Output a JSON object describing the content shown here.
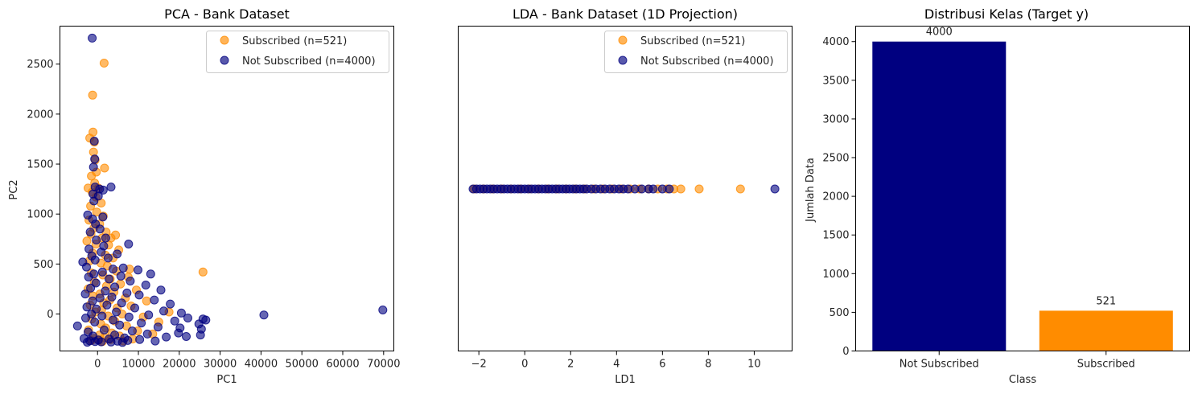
{
  "figure": {
    "background": "#ffffff",
    "colors": {
      "subscribed": "#FF8C00",
      "not_subscribed": "#000080"
    }
  },
  "chart_data": [
    {
      "type": "scatter",
      "title": "PCA - Bank Dataset",
      "xlabel": "PC1",
      "ylabel": "PC2",
      "xlim": [
        -9200,
        72500
      ],
      "ylim": [
        -370,
        2880
      ],
      "xticks": [
        0,
        10000,
        20000,
        30000,
        40000,
        50000,
        60000,
        70000
      ],
      "xtick_labels": [
        "0",
        "10000",
        "20000",
        "30000",
        "40000",
        "50000",
        "60000",
        "70000"
      ],
      "yticks": [
        0,
        500,
        1000,
        1500,
        2000,
        2500
      ],
      "ytick_labels": [
        "0",
        "500",
        "1000",
        "1500",
        "2000",
        "2500"
      ],
      "legend_position": "upper right",
      "series": [
        {
          "name": "Subscribed (n=521)",
          "color": "#FF8C00",
          "points": [
            [
              1600,
              2510
            ],
            [
              -1200,
              2190
            ],
            [
              -1100,
              1820
            ],
            [
              -1900,
              1760
            ],
            [
              -800,
              1720
            ],
            [
              -1000,
              1620
            ],
            [
              -600,
              1540
            ],
            [
              1700,
              1460
            ],
            [
              -300,
              1420
            ],
            [
              -1500,
              1380
            ],
            [
              -700,
              1310
            ],
            [
              200,
              1260
            ],
            [
              -2300,
              1260
            ],
            [
              -1300,
              1220
            ],
            [
              -400,
              1170
            ],
            [
              900,
              1110
            ],
            [
              -1700,
              1080
            ],
            [
              -200,
              1020
            ],
            [
              1400,
              980
            ],
            [
              -2100,
              940
            ],
            [
              500,
              900
            ],
            [
              -900,
              860
            ],
            [
              2100,
              820
            ],
            [
              -1600,
              800
            ],
            [
              4400,
              790
            ],
            [
              1100,
              760
            ],
            [
              3300,
              760
            ],
            [
              -2600,
              730
            ],
            [
              -400,
              700
            ],
            [
              2700,
              690
            ],
            [
              5200,
              640
            ],
            [
              -1200,
              610
            ],
            [
              1900,
              590
            ],
            [
              3800,
              560
            ],
            [
              -2000,
              530
            ],
            [
              800,
              510
            ],
            [
              2400,
              480
            ],
            [
              7800,
              450
            ],
            [
              4600,
              430
            ],
            [
              25800,
              420
            ],
            [
              -1500,
              410
            ],
            [
              1300,
              390
            ],
            [
              7500,
              370
            ],
            [
              3100,
              350
            ],
            [
              -800,
              320
            ],
            [
              5600,
              300
            ],
            [
              2200,
              280
            ],
            [
              -2300,
              250
            ],
            [
              9500,
              240
            ],
            [
              4000,
              220
            ],
            [
              600,
              200
            ],
            [
              -1100,
              180
            ],
            [
              6800,
              160
            ],
            [
              3000,
              140
            ],
            [
              12000,
              130
            ],
            [
              1500,
              110
            ],
            [
              -1800,
              90
            ],
            [
              8200,
              80
            ],
            [
              4800,
              60
            ],
            [
              17500,
              20
            ],
            [
              1000,
              40
            ],
            [
              -500,
              20
            ],
            [
              6000,
              0
            ],
            [
              2600,
              -20
            ],
            [
              11200,
              -30
            ],
            [
              -1400,
              -50
            ],
            [
              4200,
              -70
            ],
            [
              15000,
              -80
            ],
            [
              800,
              -100
            ],
            [
              7100,
              -120
            ],
            [
              2000,
              -140
            ],
            [
              -2200,
              -160
            ],
            [
              9800,
              -170
            ],
            [
              3500,
              -190
            ],
            [
              13500,
              -200
            ],
            [
              500,
              -210
            ],
            [
              5400,
              -220
            ],
            [
              1700,
              -235
            ],
            [
              -900,
              -245
            ],
            [
              8600,
              -250
            ],
            [
              3200,
              -255
            ],
            [
              300,
              -260
            ],
            [
              -1500,
              -265
            ],
            [
              6300,
              -270
            ],
            [
              1200,
              -275
            ]
          ]
        },
        {
          "name": "Not Subscribed (n=4000)",
          "color": "#000080",
          "points": [
            [
              -1300,
              2760
            ],
            [
              -800,
              1730
            ],
            [
              -1000,
              1470
            ],
            [
              -700,
              1550
            ],
            [
              500,
              1250
            ],
            [
              -600,
              1270
            ],
            [
              3300,
              1270
            ],
            [
              1400,
              1240
            ],
            [
              -1100,
              1200
            ],
            [
              200,
              1180
            ],
            [
              -900,
              1130
            ],
            [
              -2400,
              990
            ],
            [
              1300,
              970
            ],
            [
              -1200,
              950
            ],
            [
              -500,
              900
            ],
            [
              600,
              850
            ],
            [
              -1800,
              820
            ],
            [
              2000,
              760
            ],
            [
              -300,
              740
            ],
            [
              7600,
              700
            ],
            [
              1500,
              680
            ],
            [
              -2100,
              650
            ],
            [
              900,
              620
            ],
            [
              4800,
              600
            ],
            [
              -1400,
              580
            ],
            [
              2600,
              560
            ],
            [
              -600,
              540
            ],
            [
              -3600,
              520
            ],
            [
              6300,
              460
            ],
            [
              -2700,
              470
            ],
            [
              3800,
              450
            ],
            [
              9900,
              440
            ],
            [
              1200,
              420
            ],
            [
              -900,
              400
            ],
            [
              13000,
              400
            ],
            [
              5700,
              380
            ],
            [
              -2200,
              370
            ],
            [
              2800,
              350
            ],
            [
              8000,
              330
            ],
            [
              -400,
              310
            ],
            [
              11800,
              290
            ],
            [
              4200,
              270
            ],
            [
              -1700,
              260
            ],
            [
              15500,
              240
            ],
            [
              1900,
              230
            ],
            [
              7200,
              210
            ],
            [
              -3000,
              200
            ],
            [
              10200,
              190
            ],
            [
              3500,
              170
            ],
            [
              600,
              160
            ],
            [
              13900,
              140
            ],
            [
              -1200,
              130
            ],
            [
              5900,
              110
            ],
            [
              17800,
              100
            ],
            [
              2300,
              90
            ],
            [
              -2600,
              70
            ],
            [
              9100,
              60
            ],
            [
              -300,
              50
            ],
            [
              16200,
              30
            ],
            [
              4600,
              20
            ],
            [
              20500,
              10
            ],
            [
              -1500,
              0
            ],
            [
              12500,
              -10
            ],
            [
              40700,
              -10
            ],
            [
              69800,
              40
            ],
            [
              1100,
              -20
            ],
            [
              7700,
              -30
            ],
            [
              22100,
              -40
            ],
            [
              -2900,
              -40
            ],
            [
              25800,
              -50
            ],
            [
              3800,
              -60
            ],
            [
              18900,
              -70
            ],
            [
              26500,
              -60
            ],
            [
              -700,
              -80
            ],
            [
              10700,
              -90
            ],
            [
              24800,
              -100
            ],
            [
              5400,
              -110
            ],
            [
              -4900,
              -120
            ],
            [
              14800,
              -130
            ],
            [
              20200,
              -140
            ],
            [
              25400,
              -150
            ],
            [
              1600,
              -160
            ],
            [
              8500,
              -170
            ],
            [
              -2300,
              -180
            ],
            [
              19800,
              -190
            ],
            [
              12200,
              -200
            ],
            [
              4200,
              -210
            ],
            [
              25200,
              -210
            ],
            [
              -1100,
              -220
            ],
            [
              21700,
              -225
            ],
            [
              16800,
              -230
            ],
            [
              6600,
              -240
            ],
            [
              -3300,
              -245
            ],
            [
              2800,
              -250
            ],
            [
              10300,
              -255
            ],
            [
              200,
              -260
            ],
            [
              7400,
              -265
            ],
            [
              -1900,
              -268
            ],
            [
              14100,
              -270
            ],
            [
              4900,
              -272
            ],
            [
              -600,
              -275
            ],
            [
              900,
              -278
            ],
            [
              3300,
              -280
            ],
            [
              -2500,
              -282
            ],
            [
              6100,
              -284
            ]
          ]
        }
      ]
    },
    {
      "type": "scatter",
      "title": "LDA - Bank Dataset (1D Projection)",
      "xlabel": "LD1",
      "ylabel": "",
      "xlim": [
        -2.9,
        11.65
      ],
      "xticks": [
        -2,
        0,
        2,
        4,
        6,
        8,
        10
      ],
      "xtick_labels": [
        "−2",
        "0",
        "2",
        "4",
        "6",
        "8",
        "10"
      ],
      "legend_position": "upper right",
      "series": [
        {
          "name": "Subscribed (n=521)",
          "color": "#FF8C00",
          "x": [
            -2.2,
            -1.8,
            -1.4,
            -1.0,
            -0.6,
            -0.2,
            0.2,
            0.6,
            1.0,
            1.4,
            1.8,
            2.2,
            2.6,
            3.0,
            3.4,
            3.8,
            4.2,
            4.6,
            5.0,
            5.4,
            5.8,
            6.2,
            6.5,
            6.8,
            7.6,
            9.4
          ]
        },
        {
          "name": "Not Subscribed (n=4000)",
          "color": "#000080",
          "x": [
            -2.25,
            -2.1,
            -1.95,
            -1.8,
            -1.65,
            -1.5,
            -1.35,
            -1.2,
            -1.05,
            -0.9,
            -0.75,
            -0.6,
            -0.45,
            -0.3,
            -0.15,
            0.0,
            0.15,
            0.3,
            0.45,
            0.6,
            0.75,
            0.9,
            1.05,
            1.2,
            1.35,
            1.5,
            1.65,
            1.8,
            1.95,
            2.1,
            2.25,
            2.4,
            2.55,
            2.7,
            2.9,
            3.1,
            3.3,
            3.5,
            3.7,
            3.9,
            4.1,
            4.3,
            4.5,
            4.8,
            5.1,
            5.4,
            5.6,
            6.0,
            6.3,
            10.9
          ]
        }
      ]
    },
    {
      "type": "bar",
      "title": "Distribusi Kelas (Target y)",
      "xlabel": "Class",
      "ylabel": "Jumlah Data",
      "categories": [
        "Not Subscribed",
        "Subscribed"
      ],
      "values": [
        4000,
        521
      ],
      "value_labels": [
        "4000",
        "521"
      ],
      "colors": [
        "#000080",
        "#FF8C00"
      ],
      "ylim": [
        0,
        4200
      ],
      "yticks": [
        0,
        500,
        1000,
        1500,
        2000,
        2500,
        3000,
        3500,
        4000
      ],
      "ytick_labels": [
        "0",
        "500",
        "1000",
        "1500",
        "2000",
        "2500",
        "3000",
        "3500",
        "4000"
      ]
    }
  ]
}
